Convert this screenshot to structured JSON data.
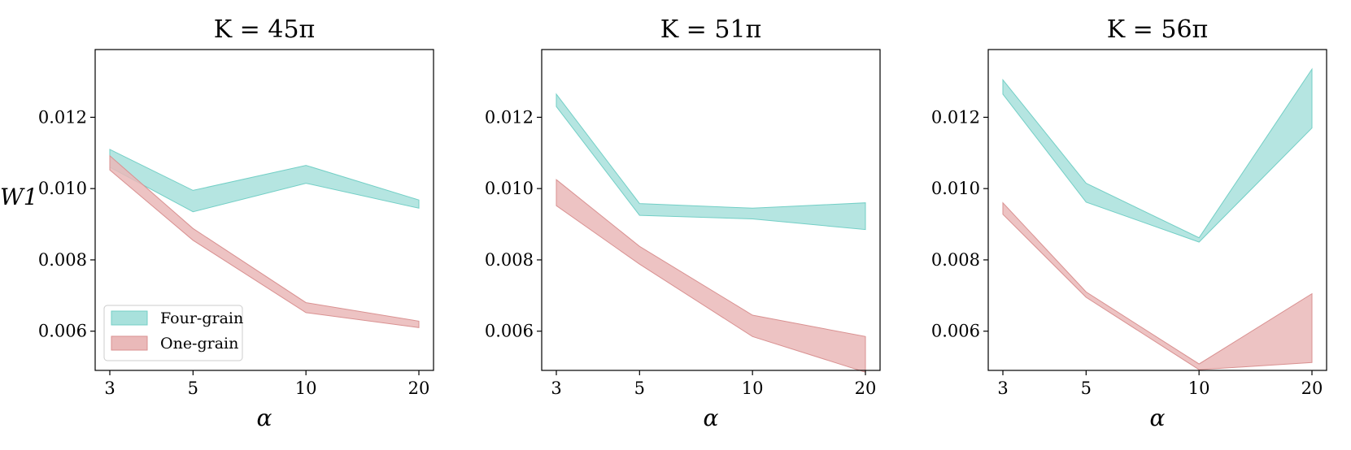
{
  "ylabel": "W1",
  "legend": [
    {
      "label": "Four-grain",
      "fill": "#a8e1dc",
      "stroke": "#73cfc6"
    },
    {
      "label": "One-grain",
      "fill": "#eab9b9",
      "stroke": "#d99191"
    }
  ],
  "chart_data": [
    {
      "type": "area",
      "title": "K = 45π",
      "xlabel": "α",
      "ylabel": "W1",
      "x": [
        3,
        5,
        10,
        20
      ],
      "x_scale": "log",
      "ylim": [
        0.0049,
        0.0139
      ],
      "yticks": [
        0.006,
        0.008,
        0.01,
        0.012
      ],
      "legend_position": "lower-left",
      "series": [
        {
          "name": "Four-grain",
          "lower": [
            0.0106,
            0.00935,
            0.01015,
            0.00945
          ],
          "upper": [
            0.0111,
            0.00995,
            0.01065,
            0.00968
          ]
        },
        {
          "name": "One-grain",
          "lower": [
            0.01052,
            0.00855,
            0.00652,
            0.0061
          ],
          "upper": [
            0.01092,
            0.00888,
            0.0068,
            0.00628
          ]
        }
      ]
    },
    {
      "type": "area",
      "title": "K = 51π",
      "xlabel": "α",
      "ylabel": "",
      "x": [
        3,
        5,
        10,
        20
      ],
      "x_scale": "log",
      "ylim": [
        0.0049,
        0.0139
      ],
      "yticks": [
        0.006,
        0.008,
        0.01,
        0.012
      ],
      "series": [
        {
          "name": "Four-grain",
          "lower": [
            0.0123,
            0.00925,
            0.00915,
            0.00885
          ],
          "upper": [
            0.01265,
            0.00958,
            0.00945,
            0.0096
          ]
        },
        {
          "name": "One-grain",
          "lower": [
            0.00952,
            0.00788,
            0.00585,
            0.00485
          ],
          "upper": [
            0.01025,
            0.00838,
            0.00645,
            0.00585
          ]
        }
      ]
    },
    {
      "type": "area",
      "title": "K = 56π",
      "xlabel": "α",
      "ylabel": "",
      "x": [
        3,
        5,
        10,
        20
      ],
      "x_scale": "log",
      "ylim": [
        0.0049,
        0.0139
      ],
      "yticks": [
        0.006,
        0.008,
        0.01,
        0.012
      ],
      "series": [
        {
          "name": "Four-grain",
          "lower": [
            0.01265,
            0.00962,
            0.0085,
            0.0117
          ],
          "upper": [
            0.01305,
            0.01015,
            0.00862,
            0.01335
          ]
        },
        {
          "name": "One-grain",
          "lower": [
            0.00928,
            0.00695,
            0.00492,
            0.00512
          ],
          "upper": [
            0.0096,
            0.0071,
            0.00508,
            0.00705
          ]
        }
      ]
    }
  ]
}
